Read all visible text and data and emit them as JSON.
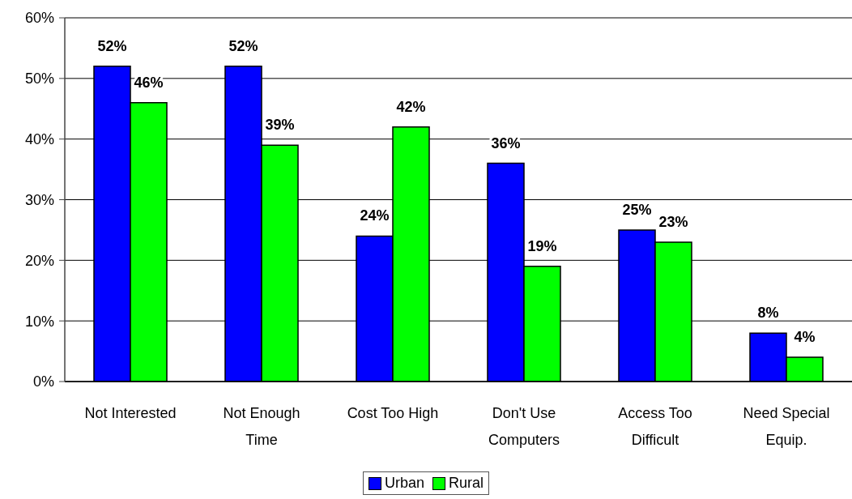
{
  "chart_data": {
    "type": "bar",
    "categories": [
      "Not Interested",
      "Not Enough Time",
      "Cost Too High",
      "Don't Use Computers",
      "Access Too Difficult",
      "Need Special Equip."
    ],
    "series": [
      {
        "name": "Urban",
        "color": "#0000ff",
        "values": [
          52,
          52,
          24,
          36,
          25,
          8
        ],
        "value_labels": [
          "52%",
          "52%",
          "24%",
          "36%",
          "25%",
          "8%"
        ]
      },
      {
        "name": "Rural",
        "color": "#00ff00",
        "values": [
          46,
          39,
          42,
          19,
          23,
          4
        ],
        "value_labels": [
          "46%",
          "39%",
          "42%",
          "19%",
          "23%",
          "4%"
        ]
      }
    ],
    "ylim": [
      0,
      60
    ],
    "yticks": [
      {
        "value": 0,
        "label": "0%"
      },
      {
        "value": 10,
        "label": "10%"
      },
      {
        "value": 20,
        "label": "20%"
      },
      {
        "value": 30,
        "label": "30%"
      },
      {
        "value": 40,
        "label": "40%"
      },
      {
        "value": 50,
        "label": "50%"
      },
      {
        "value": 60,
        "label": "60%"
      }
    ],
    "grid": "y",
    "legend": "bottom"
  }
}
